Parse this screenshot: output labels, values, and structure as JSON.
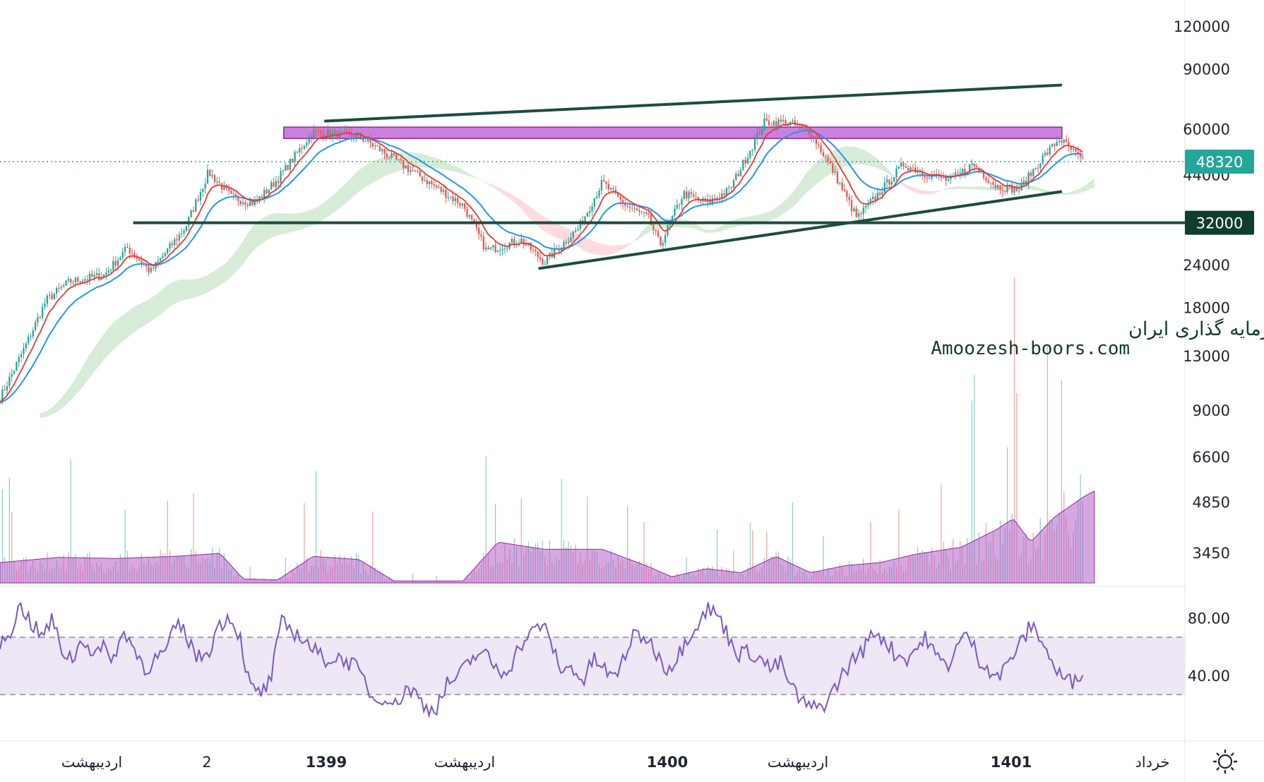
{
  "chart_data": [
    {
      "type": "candlestick",
      "scale": "log",
      "ylim": [
        10000,
        125000
      ],
      "y_ticks": [
        "120000",
        "90000",
        "60000",
        "44000",
        "24000",
        "18000",
        "13000",
        "9000"
      ],
      "last_price_label": "48320",
      "last_price": 48320,
      "support_label": "32000",
      "support": 32000,
      "resistance_zone": [
        56500,
        61000
      ],
      "trendlines": [
        {
          "name": "upper-channel",
          "from_price": 63500,
          "to_price": 81000
        },
        {
          "name": "lower-channel",
          "from_price": 23500,
          "to_price": 39500
        }
      ],
      "indicators": [
        "moving-average-red",
        "moving-average-blue",
        "ichimoku-cloud"
      ],
      "price_path": [
        {
          "x": 0.0,
          "y": 9800
        },
        {
          "x": 0.02,
          "y": 13500
        },
        {
          "x": 0.04,
          "y": 19000
        },
        {
          "x": 0.06,
          "y": 21500
        },
        {
          "x": 0.09,
          "y": 22500
        },
        {
          "x": 0.11,
          "y": 27000
        },
        {
          "x": 0.13,
          "y": 23000
        },
        {
          "x": 0.16,
          "y": 31000
        },
        {
          "x": 0.18,
          "y": 45000
        },
        {
          "x": 0.2,
          "y": 38000
        },
        {
          "x": 0.22,
          "y": 36500
        },
        {
          "x": 0.24,
          "y": 43000
        },
        {
          "x": 0.27,
          "y": 59000
        },
        {
          "x": 0.29,
          "y": 58000
        },
        {
          "x": 0.31,
          "y": 57500
        },
        {
          "x": 0.4,
          "y": 36000
        },
        {
          "x": 0.42,
          "y": 26500
        },
        {
          "x": 0.45,
          "y": 28500
        },
        {
          "x": 0.47,
          "y": 24500
        },
        {
          "x": 0.5,
          "y": 31000
        },
        {
          "x": 0.52,
          "y": 42000
        },
        {
          "x": 0.54,
          "y": 36000
        },
        {
          "x": 0.56,
          "y": 33000
        },
        {
          "x": 0.57,
          "y": 27500
        },
        {
          "x": 0.59,
          "y": 39000
        },
        {
          "x": 0.61,
          "y": 36500
        },
        {
          "x": 0.63,
          "y": 40000
        },
        {
          "x": 0.66,
          "y": 63000
        },
        {
          "x": 0.68,
          "y": 63000
        },
        {
          "x": 0.7,
          "y": 59000
        },
        {
          "x": 0.72,
          "y": 45000
        },
        {
          "x": 0.74,
          "y": 33000
        },
        {
          "x": 0.76,
          "y": 39500
        },
        {
          "x": 0.78,
          "y": 47500
        },
        {
          "x": 0.8,
          "y": 44500
        },
        {
          "x": 0.82,
          "y": 42500
        },
        {
          "x": 0.84,
          "y": 47500
        },
        {
          "x": 0.86,
          "y": 41000
        },
        {
          "x": 0.88,
          "y": 40000
        },
        {
          "x": 0.9,
          "y": 49500
        },
        {
          "x": 0.915,
          "y": 56500
        },
        {
          "x": 0.935,
          "y": 48320
        }
      ]
    },
    {
      "type": "bar",
      "name": "volume",
      "y_ticks": [
        "6600",
        "4850",
        "3450"
      ],
      "ylim": [
        0,
        8500
      ],
      "ma_path": [
        {
          "x": 0.0,
          "y": 1000
        },
        {
          "x": 0.05,
          "y": 1250
        },
        {
          "x": 0.1,
          "y": 1200
        },
        {
          "x": 0.15,
          "y": 1300
        },
        {
          "x": 0.19,
          "y": 1450
        },
        {
          "x": 0.21,
          "y": 200
        },
        {
          "x": 0.24,
          "y": 150
        },
        {
          "x": 0.27,
          "y": 1300
        },
        {
          "x": 0.31,
          "y": 1150
        },
        {
          "x": 0.34,
          "y": 100
        },
        {
          "x": 0.4,
          "y": 100
        },
        {
          "x": 0.43,
          "y": 2000
        },
        {
          "x": 0.47,
          "y": 1650
        },
        {
          "x": 0.52,
          "y": 1650
        },
        {
          "x": 0.56,
          "y": 800
        },
        {
          "x": 0.58,
          "y": 300
        },
        {
          "x": 0.61,
          "y": 700
        },
        {
          "x": 0.64,
          "y": 500
        },
        {
          "x": 0.67,
          "y": 1300
        },
        {
          "x": 0.7,
          "y": 500
        },
        {
          "x": 0.73,
          "y": 850
        },
        {
          "x": 0.76,
          "y": 1000
        },
        {
          "x": 0.79,
          "y": 1400
        },
        {
          "x": 0.83,
          "y": 1750
        },
        {
          "x": 0.86,
          "y": 2600
        },
        {
          "x": 0.875,
          "y": 3150
        },
        {
          "x": 0.89,
          "y": 2000
        },
        {
          "x": 0.91,
          "y": 3200
        },
        {
          "x": 0.935,
          "y": 4200
        },
        {
          "x": 0.945,
          "y": 4500
        }
      ]
    },
    {
      "type": "line",
      "name": "RSI",
      "ylim": [
        0,
        100
      ],
      "y_ticks": [
        "80.00",
        "40.00"
      ],
      "bands": [
        70,
        30
      ],
      "values": [
        65,
        75,
        92,
        80,
        70,
        82,
        60,
        55,
        70,
        58,
        62,
        56,
        75,
        60,
        48,
        55,
        60,
        80,
        70,
        55,
        60,
        78,
        85,
        72,
        35,
        30,
        40,
        80,
        75,
        70,
        62,
        55,
        55,
        55,
        50,
        40,
        25,
        30,
        22,
        35,
        30,
        20,
        22,
        38,
        42,
        52,
        60,
        55,
        45,
        50,
        65,
        72,
        80,
        65,
        45,
        50,
        38,
        55,
        48,
        40,
        58,
        72,
        70,
        60,
        48,
        55,
        70,
        80,
        90,
        85,
        70,
        58,
        60,
        55,
        48,
        52,
        35,
        25,
        20,
        22,
        32,
        45,
        55,
        62,
        75,
        68,
        58,
        55,
        62,
        70,
        55,
        50,
        65,
        72,
        55,
        48,
        42,
        55,
        65,
        78,
        70,
        52,
        42,
        38,
        48
      ]
    }
  ],
  "time_axis": [
    {
      "label": "اردیبهشت",
      "bold": false
    },
    {
      "label": "2",
      "bold": false
    },
    {
      "label": "1399",
      "bold": true
    },
    {
      "label": "اردیبهشت",
      "bold": false
    },
    {
      "label": "1400",
      "bold": true
    },
    {
      "label": "اردیبهشت",
      "bold": false
    },
    {
      "label": "1401",
      "bold": true
    },
    {
      "label": "خرداد",
      "bold": false
    }
  ],
  "watermark": {
    "line1": "انجمن خبرگان سرمایه گذاری ایران",
    "line2": "Amoozesh-boors.com"
  },
  "colors": {
    "candle_up": "#26a69a",
    "candle_down": "#ef5350",
    "ma_fast": "#e53935",
    "ma_slow": "#2196f3",
    "cloud_up": "#c8e6c9",
    "cloud_down": "#ffcdd2",
    "trendline": "#1b4d3e",
    "zone_fill": "#cc80dd",
    "zone_stroke": "#8e2a9e",
    "volume_area": "#b560c8",
    "rsi_line": "#7e57c2",
    "rsi_band": "#ede7f6",
    "last_badge": "#26a69a",
    "support_badge": "#0f3d2e"
  },
  "settings_icon": "gear-icon"
}
